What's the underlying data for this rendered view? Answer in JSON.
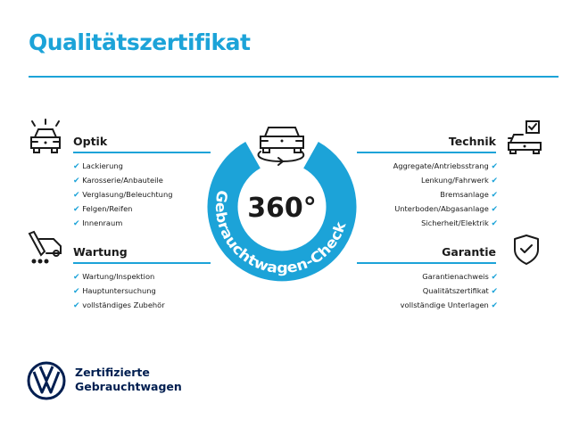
{
  "title": "Qualitätszertifikat",
  "accent_color": "#1ca3d8",
  "brand_color": "#001e50",
  "center_badge": {
    "value": "360°",
    "ring_text": "Gebrauchtwagen-Check",
    "icon": "car-rotate-icon"
  },
  "sections": {
    "optik": {
      "heading": "Optik",
      "icon": "car-lights-icon",
      "items": [
        "Lackierung",
        "Karosserie/Anbauteile",
        "Verglasung/Beleuchtung",
        "Felgen/Reifen",
        "Innenraum"
      ]
    },
    "wartung": {
      "heading": "Wartung",
      "icon": "service-van-icon",
      "items": [
        "Wartung/Inspektion",
        "Hauptuntersuchung",
        "vollständiges Zubehör"
      ]
    },
    "technik": {
      "heading": "Technik",
      "icon": "car-checkbox-icon",
      "items": [
        "Aggregate/Antriebsstrang",
        "Lenkung/Fahrwerk",
        "Bremsanlage",
        "Unterboden/Abgasanlage",
        "Sicherheit/Elektrik"
      ]
    },
    "garantie": {
      "heading": "Garantie",
      "icon": "shield-check-icon",
      "items": [
        "Garantienachweis",
        "Qualitätszertifikat",
        "vollständige Unterlagen"
      ]
    }
  },
  "check_glyph": "✔",
  "footer": {
    "line1": "Zertifizierte",
    "line2": "Gebrauchtwagen",
    "logo": "vw-logo"
  }
}
